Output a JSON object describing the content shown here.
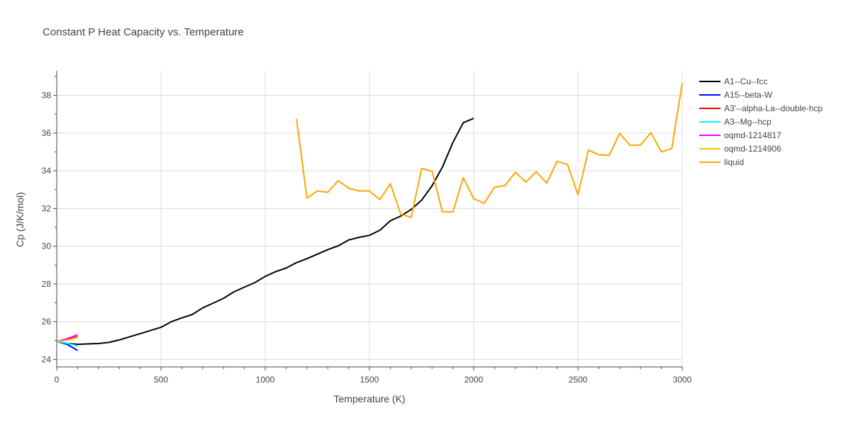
{
  "chart_data": {
    "type": "line",
    "title": "Constant P Heat Capacity vs. Temperature",
    "xlabel": "Temperature (K)",
    "ylabel": "Cp (J/K/mol)",
    "xlim": [
      0,
      3000
    ],
    "ylim": [
      23.6,
      39.3
    ],
    "xticks": [
      0,
      500,
      1000,
      1500,
      2000,
      2500,
      3000
    ],
    "yticks": [
      24,
      26,
      28,
      30,
      32,
      34,
      36,
      38
    ],
    "grid": true,
    "legend_position": "right",
    "series": [
      {
        "name": "A1--Cu--fcc",
        "color": "#000000",
        "x": [
          0,
          50,
          100,
          150,
          200,
          250,
          300,
          350,
          400,
          450,
          500,
          550,
          600,
          650,
          700,
          750,
          800,
          850,
          900,
          950,
          1000,
          1050,
          1100,
          1150,
          1200,
          1250,
          1300,
          1350,
          1400,
          1450,
          1500,
          1550,
          1600,
          1650,
          1700,
          1750,
          1800,
          1850,
          1900,
          1950,
          2000
        ],
        "y": [
          24.95,
          24.85,
          24.8,
          24.82,
          24.84,
          24.9,
          25.03,
          25.2,
          25.36,
          25.53,
          25.7,
          26.0,
          26.2,
          26.38,
          26.73,
          26.98,
          27.24,
          27.58,
          27.83,
          28.07,
          28.4,
          28.65,
          28.84,
          29.13,
          29.34,
          29.58,
          29.82,
          30.02,
          30.33,
          30.47,
          30.58,
          30.85,
          31.35,
          31.6,
          31.95,
          32.44,
          33.2,
          34.2,
          35.5,
          36.55,
          36.78
        ]
      },
      {
        "name": "A15--beta-W",
        "color": "#0000ff",
        "x": [
          0,
          50,
          100
        ],
        "y": [
          24.95,
          24.8,
          24.47
        ]
      },
      {
        "name": "A3'--alpha-La--double-hcp",
        "color": "#ff0000",
        "x": [
          0,
          50,
          100
        ],
        "y": [
          24.95,
          25.05,
          25.2
        ]
      },
      {
        "name": "A3--Mg--hcp",
        "color": "#00ffff",
        "x": [
          0,
          50,
          100
        ],
        "y": [
          24.95,
          24.85,
          24.72
        ]
      },
      {
        "name": "oqmd-1214817",
        "color": "#ff00ff",
        "x": [
          0,
          50,
          100
        ],
        "y": [
          24.95,
          25.1,
          25.3
        ]
      },
      {
        "name": "oqmd-1214906",
        "color": "#ffc000",
        "x": [
          0,
          50,
          100
        ],
        "y": [
          24.95,
          25.02,
          25.15
        ]
      },
      {
        "name": "liquid",
        "color": "#ffa500",
        "x": [
          1150,
          1200,
          1250,
          1300,
          1350,
          1400,
          1450,
          1500,
          1550,
          1600,
          1650,
          1700,
          1750,
          1800,
          1850,
          1900,
          1950,
          2000,
          2050,
          2100,
          2150,
          2200,
          2250,
          2300,
          2350,
          2400,
          2450,
          2500,
          2550,
          2600,
          2650,
          2700,
          2750,
          2800,
          2850,
          2900,
          2950,
          3000
        ],
        "y": [
          36.75,
          32.55,
          32.93,
          32.86,
          33.48,
          33.08,
          32.93,
          32.93,
          32.47,
          33.32,
          31.7,
          31.53,
          34.12,
          33.98,
          31.83,
          31.82,
          33.63,
          32.52,
          32.28,
          33.13,
          33.22,
          33.92,
          33.4,
          33.95,
          33.35,
          34.5,
          34.33,
          32.73,
          35.1,
          34.85,
          34.82,
          35.99,
          35.34,
          35.37,
          36.02,
          35.0,
          35.18,
          38.65
        ]
      }
    ]
  }
}
